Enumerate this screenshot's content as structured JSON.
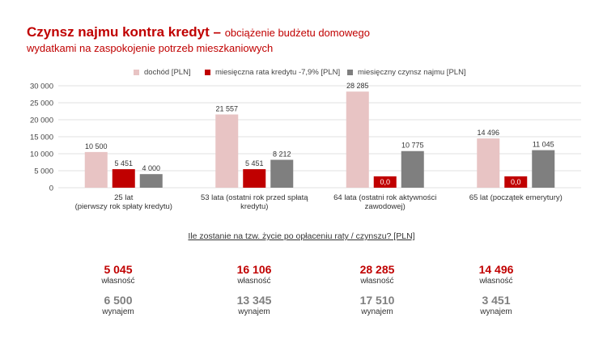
{
  "title": {
    "main": "Czynsz najmu kontra kredyt",
    "dash": " – ",
    "subtitle_line1": "obciążenie budżetu domowego",
    "subtitle_line2": "wydatkami na zaspokojenie potrzeb mieszkaniowych"
  },
  "colors": {
    "income": "#e8c4c4",
    "loan": "#c00000",
    "rent": "#7f7f7f",
    "grid": "#d9d9d9",
    "title": "#c00000"
  },
  "chart_data": {
    "type": "bar",
    "categories": [
      [
        "25 lat",
        "(pierwszy rok spłaty kredytu)"
      ],
      [
        "53 lata (ostatni rok przed spłatą",
        "kredytu)"
      ],
      [
        "64 lata (ostatni rok aktywności",
        "zawodowej)"
      ],
      [
        "65 lat (początek emerytury)"
      ]
    ],
    "series": [
      {
        "name": "dochód [PLN]",
        "values": [
          10500,
          21557,
          28285,
          14496
        ],
        "labels": [
          "10 500",
          "21 557",
          "28 285",
          "14 496"
        ]
      },
      {
        "name": "miesięczna rata kredytu -7,9% [PLN]",
        "values": [
          5451,
          5451,
          0,
          0
        ],
        "labels": [
          "5 451",
          "5 451",
          "0,0",
          "0,0"
        ]
      },
      {
        "name": "miesięczny czynsz najmu [PLN]",
        "values": [
          4000,
          8212,
          10775,
          11045
        ],
        "labels": [
          "4 000",
          "8 212",
          "10 775",
          "11 045"
        ]
      }
    ],
    "ylim": [
      0,
      30000
    ],
    "yticks": [
      0,
      5000,
      10000,
      15000,
      20000,
      25000,
      30000
    ],
    "ytick_labels": [
      "0",
      "5 000",
      "10 000",
      "15 000",
      "20 000",
      "25 000",
      "30 000"
    ],
    "grid": true,
    "legend": "top"
  },
  "summary": {
    "question": "Ile zostanie na tzw. życie po opłaceniu raty / czynszu? [PLN]",
    "columns": [
      {
        "own": "5 045",
        "own_label": "własność",
        "rent": "6 500",
        "rent_label": "wynajem"
      },
      {
        "own": "16 106",
        "own_label": "własność",
        "rent": "13 345",
        "rent_label": "wynajem"
      },
      {
        "own": "28 285",
        "own_label": "własność",
        "rent": "17 510",
        "rent_label": "wynajem"
      },
      {
        "own": "14 496",
        "own_label": "własność",
        "rent": "3 451",
        "rent_label": "wynajem"
      }
    ]
  }
}
